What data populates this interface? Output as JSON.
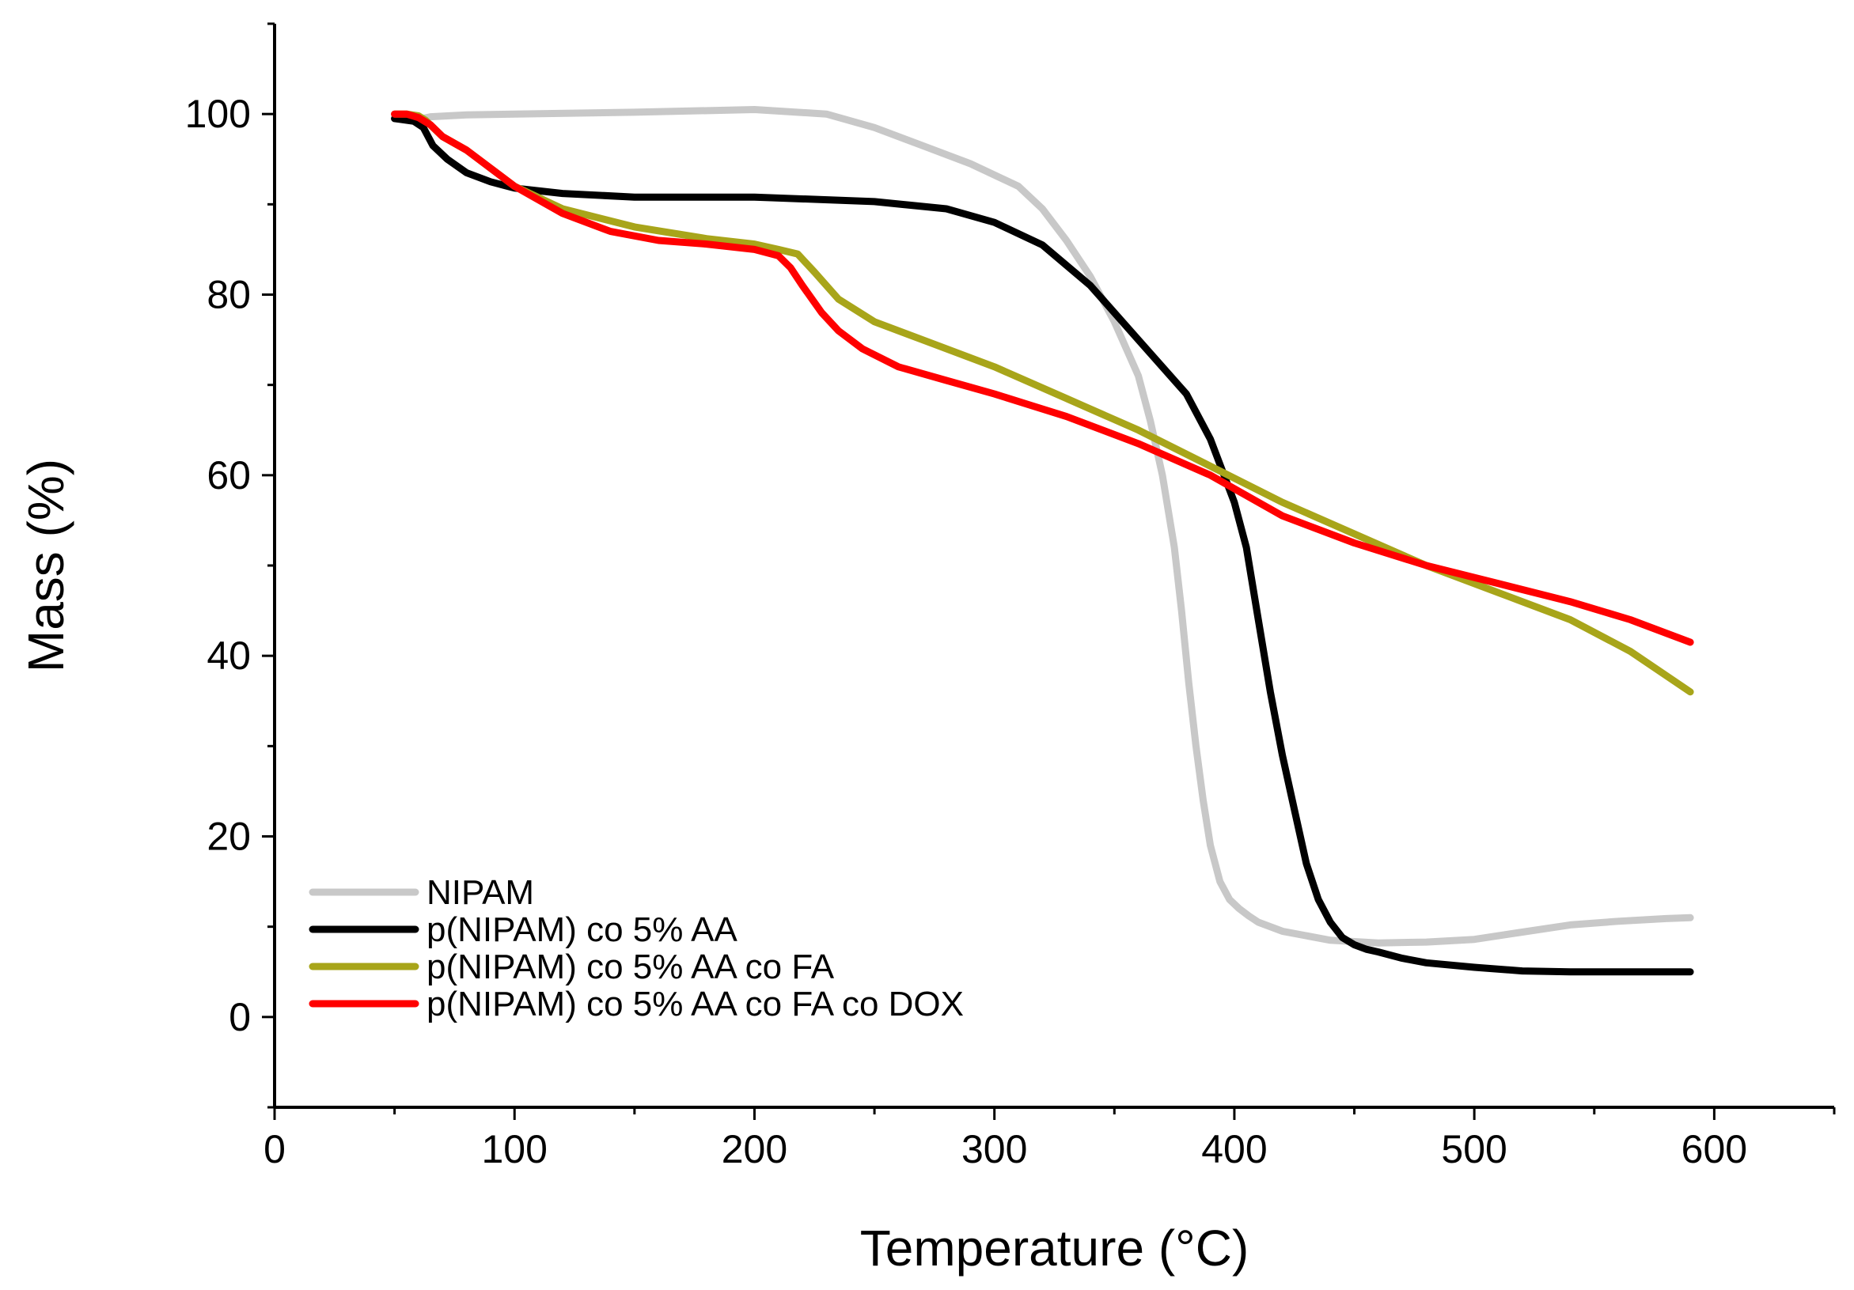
{
  "chart_data": {
    "type": "line",
    "title": "",
    "xlabel": "Temperature (°C)",
    "ylabel": "Mass (%)",
    "xlim": [
      0,
      650
    ],
    "ylim": [
      -10,
      110
    ],
    "xticks": [
      0,
      100,
      200,
      300,
      400,
      500,
      600
    ],
    "yticks": [
      0,
      20,
      40,
      60,
      80,
      100
    ],
    "xtick_labels": [
      "0",
      "100",
      "200",
      "300",
      "400",
      "500",
      "600"
    ],
    "ytick_labels": [
      "0",
      "20",
      "40",
      "60",
      "80",
      "100"
    ],
    "grid": false,
    "legend_position": "bottom-left",
    "series": [
      {
        "name": "NIPAM",
        "color": "#c8c8c8",
        "x": [
          50,
          58,
          65,
          80,
          100,
          150,
          200,
          230,
          250,
          270,
          290,
          310,
          320,
          330,
          340,
          350,
          360,
          365,
          370,
          375,
          378,
          381,
          384,
          387,
          390,
          394,
          398,
          402,
          406,
          410,
          420,
          440,
          460,
          480,
          500,
          520,
          540,
          560,
          580,
          590
        ],
        "values": [
          99.5,
          99.3,
          99.7,
          99.9,
          100.0,
          100.2,
          100.5,
          100.0,
          98.5,
          96.5,
          94.5,
          92.0,
          89.5,
          86.0,
          82.0,
          77.0,
          71.0,
          66.0,
          60.0,
          52.0,
          45.0,
          37.0,
          30.0,
          24.0,
          19.0,
          15.0,
          13.0,
          12.0,
          11.2,
          10.5,
          9.5,
          8.5,
          8.2,
          8.3,
          8.6,
          9.4,
          10.2,
          10.6,
          10.9,
          11.0
        ]
      },
      {
        "name": "p(NIPAM) co 5% AA",
        "color": "#000000",
        "x": [
          50,
          58,
          62,
          66,
          72,
          80,
          90,
          100,
          120,
          150,
          200,
          250,
          280,
          300,
          320,
          340,
          360,
          380,
          390,
          400,
          405,
          410,
          415,
          420,
          425,
          430,
          435,
          440,
          445,
          450,
          455,
          460,
          470,
          480,
          500,
          520,
          540,
          560,
          590
        ],
        "values": [
          99.5,
          99.2,
          98.5,
          96.5,
          95.0,
          93.5,
          92.5,
          91.8,
          91.2,
          90.8,
          90.8,
          90.3,
          89.5,
          88.0,
          85.5,
          81.0,
          75.0,
          69.0,
          64.0,
          57.0,
          52.0,
          44.0,
          36.0,
          29.0,
          23.0,
          17.0,
          13.0,
          10.5,
          8.8,
          8.0,
          7.5,
          7.2,
          6.5,
          6.0,
          5.5,
          5.1,
          5.0,
          5.0,
          5.0
        ]
      },
      {
        "name": "p(NIPAM) co 5% AA co FA",
        "color": "#a8a51a",
        "x": [
          50,
          55,
          60,
          63,
          70,
          80,
          100,
          120,
          150,
          180,
          200,
          210,
          218,
          225,
          235,
          250,
          270,
          300,
          330,
          360,
          390,
          420,
          450,
          480,
          510,
          540,
          565,
          590
        ],
        "values": [
          100.0,
          100.0,
          99.8,
          99.3,
          97.5,
          96.0,
          92.0,
          89.5,
          87.5,
          86.2,
          85.6,
          85.0,
          84.5,
          82.5,
          79.5,
          77.0,
          75.0,
          72.0,
          68.5,
          65.0,
          61.0,
          57.0,
          53.5,
          50.0,
          47.0,
          44.0,
          40.5,
          36.0
        ]
      },
      {
        "name": "p(NIPAM) co 5% AA co FA co DOX",
        "color": "#ff0000",
        "x": [
          50,
          55,
          60,
          65,
          70,
          80,
          100,
          120,
          140,
          160,
          180,
          200,
          210,
          215,
          220,
          228,
          235,
          245,
          260,
          280,
          300,
          330,
          360,
          390,
          420,
          450,
          480,
          510,
          540,
          565,
          590
        ],
        "values": [
          100.0,
          100.0,
          99.6,
          98.8,
          97.5,
          96.0,
          92.0,
          89.0,
          87.0,
          86.0,
          85.6,
          85.0,
          84.3,
          83.0,
          81.0,
          78.0,
          76.0,
          74.0,
          72.0,
          70.5,
          69.0,
          66.5,
          63.5,
          60.0,
          55.5,
          52.5,
          50.0,
          48.0,
          46.0,
          44.0,
          41.5
        ]
      }
    ]
  }
}
